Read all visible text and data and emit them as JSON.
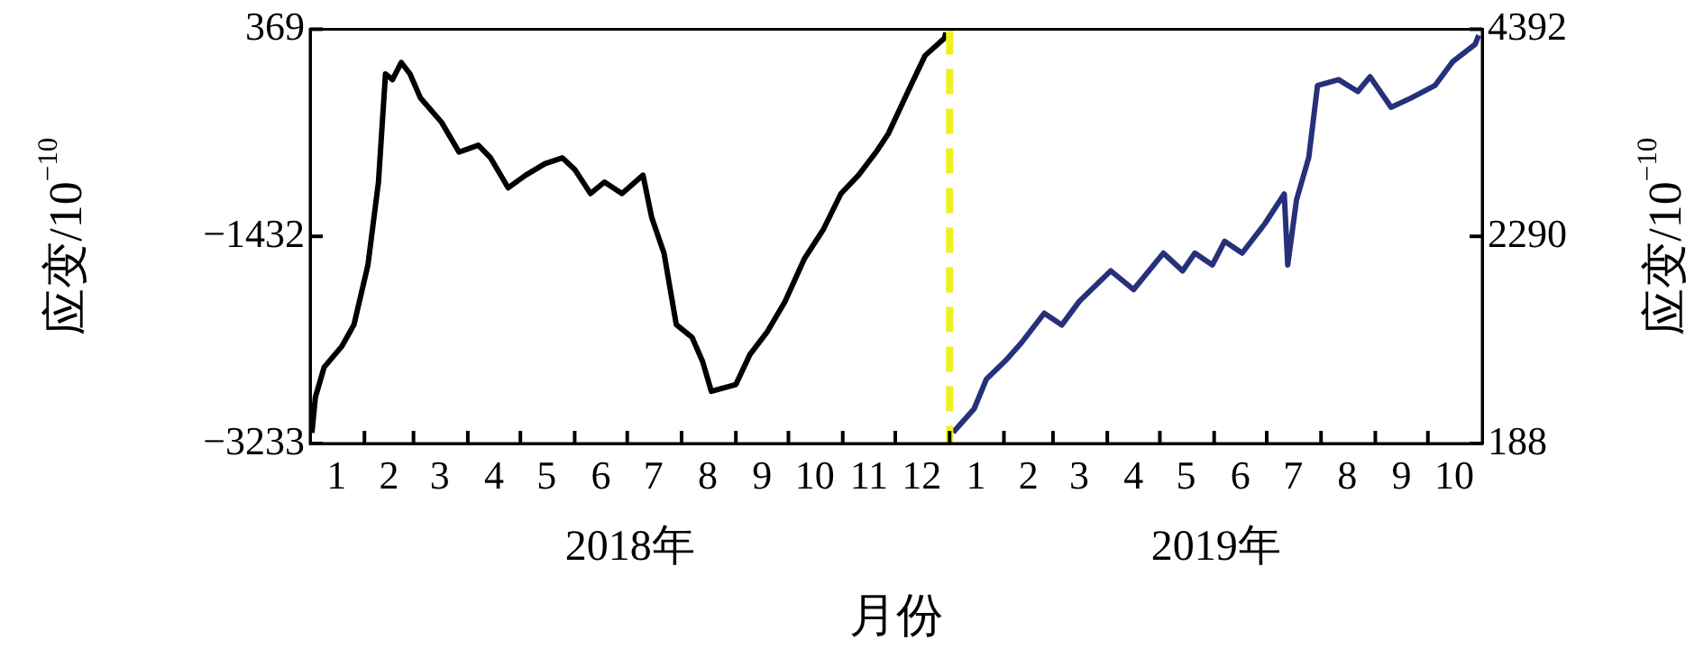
{
  "chart_data": {
    "type": "line",
    "xlabel": "月份",
    "ylabel": "应变/10$^{−10}$",
    "y2label": "应变/10$^{−10}$",
    "annotations": [
      "2018年",
      "2019年"
    ],
    "xlim": [
      "2018-01-01",
      "2019-11-01"
    ],
    "xticks": [
      {
        "value": "2018-01-16",
        "label": "1"
      },
      {
        "value": "2018-02-15",
        "label": "2"
      },
      {
        "value": "2018-03-16",
        "label": "3"
      },
      {
        "value": "2018-04-16",
        "label": "4"
      },
      {
        "value": "2018-05-16",
        "label": "5"
      },
      {
        "value": "2018-06-16",
        "label": "6"
      },
      {
        "value": "2018-07-16",
        "label": "7"
      },
      {
        "value": "2018-08-16",
        "label": "8"
      },
      {
        "value": "2018-09-16",
        "label": "9"
      },
      {
        "value": "2018-10-16",
        "label": "10"
      },
      {
        "value": "2018-11-16",
        "label": "11"
      },
      {
        "value": "2018-12-16",
        "label": "12"
      },
      {
        "value": "2019-01-16",
        "label": "1"
      },
      {
        "value": "2019-02-15",
        "label": "2"
      },
      {
        "value": "2019-03-16",
        "label": "3"
      },
      {
        "value": "2019-04-16",
        "label": "4"
      },
      {
        "value": "2019-05-16",
        "label": "5"
      },
      {
        "value": "2019-06-16",
        "label": "6"
      },
      {
        "value": "2019-07-16",
        "label": "7"
      },
      {
        "value": "2019-08-16",
        "label": "8"
      },
      {
        "value": "2019-09-16",
        "label": "9"
      },
      {
        "value": "2019-10-16",
        "label": "10"
      },
      {
        "value": "2018-02-01",
        "label": null
      },
      {
        "value": "2018-03-01",
        "label": null
      },
      {
        "value": "2018-04-01",
        "label": null
      },
      {
        "value": "2018-05-01",
        "label": null
      },
      {
        "value": "2018-06-01",
        "label": null
      },
      {
        "value": "2018-07-01",
        "label": null
      },
      {
        "value": "2018-08-01",
        "label": null
      },
      {
        "value": "2018-09-01",
        "label": null
      },
      {
        "value": "2018-10-01",
        "label": null
      },
      {
        "value": "2018-11-01",
        "label": null
      },
      {
        "value": "2018-12-01",
        "label": null
      },
      {
        "value": "2019-01-01",
        "label": null
      },
      {
        "value": "2019-02-01",
        "label": null
      },
      {
        "value": "2019-03-01",
        "label": null
      },
      {
        "value": "2019-04-01",
        "label": null
      },
      {
        "value": "2019-05-01",
        "label": null
      },
      {
        "value": "2019-06-01",
        "label": null
      },
      {
        "value": "2019-07-01",
        "label": null
      },
      {
        "value": "2019-08-01",
        "label": null
      },
      {
        "value": "2019-09-01",
        "label": null
      },
      {
        "value": "2019-10-01",
        "label": null
      }
    ],
    "ylim": [
      -3233,
      369
    ],
    "yticks": [
      {
        "value": -3233,
        "label": "−3233"
      },
      {
        "value": -1432,
        "label": "−1432"
      },
      369
    ],
    "y2lim": [
      188,
      4392
    ],
    "y2ticks": [
      188,
      2290,
      4392
    ],
    "marker": "none",
    "legend": false,
    "grid": false,
    "ref_lines": [
      {
        "axis": "x",
        "value": "2019-01-01",
        "label": null,
        "color": "#f0f020",
        "line_style": "dashed"
      }
    ],
    "series": [
      {
        "color": "#000000",
        "x": [
          "2018-01-02",
          "2018-01-04",
          "2018-01-09",
          "2018-01-19",
          "2018-01-26",
          "2018-02-03",
          "2018-02-09",
          "2018-02-13",
          "2018-02-17",
          "2018-02-22",
          "2018-02-27",
          "2018-03-05",
          "2018-03-17",
          "2018-03-27",
          "2018-04-07",
          "2018-04-14",
          "2018-04-24",
          "2018-05-04",
          "2018-05-15",
          "2018-05-25",
          "2018-06-01",
          "2018-06-10",
          "2018-06-18",
          "2018-06-28",
          "2018-07-10",
          "2018-07-15",
          "2018-07-22",
          "2018-07-29",
          "2018-08-07",
          "2018-08-13",
          "2018-08-18",
          "2018-08-25",
          "2018-09-01",
          "2018-09-09",
          "2018-09-19",
          "2018-09-29",
          "2018-10-10",
          "2018-10-21",
          "2018-10-31",
          "2018-11-10",
          "2018-11-20",
          "2018-11-27",
          "2018-12-08",
          "2018-12-18",
          "2018-12-29",
          "2018-12-30"
        ],
        "values": [
          -3140,
          -2830,
          -2570,
          -2390,
          -2200,
          -1680,
          -960,
          -20,
          -70,
          80,
          -20,
          -230,
          -440,
          -700,
          -640,
          -750,
          -1010,
          -900,
          -800,
          -750,
          -850,
          -1060,
          -960,
          -1060,
          -900,
          -1270,
          -1580,
          -2200,
          -2310,
          -2520,
          -2780,
          -2750,
          -2720,
          -2460,
          -2260,
          -2000,
          -1630,
          -1370,
          -1060,
          -900,
          -700,
          -540,
          -180,
          140,
          290,
          340
        ]
      },
      {
        "color": "#27307a",
        "axis": "y2",
        "x": [
          "2019-01-03",
          "2019-01-15",
          "2019-01-22",
          "2019-02-02",
          "2019-02-11",
          "2019-02-24",
          "2019-03-06",
          "2019-03-16",
          "2019-04-03",
          "2019-04-16",
          "2019-05-03",
          "2019-05-14",
          "2019-05-21",
          "2019-05-31",
          "2019-06-07",
          "2019-06-17",
          "2019-06-30",
          "2019-07-11",
          "2019-07-13",
          "2019-07-18",
          "2019-07-25",
          "2019-07-30",
          "2019-08-11",
          "2019-08-22",
          "2019-08-29",
          "2019-09-10",
          "2019-09-21",
          "2019-10-05",
          "2019-10-15",
          "2019-10-28",
          "2019-10-30"
        ],
        "values": [
          300,
          540,
          840,
          1030,
          1210,
          1510,
          1390,
          1630,
          1940,
          1750,
          2120,
          1940,
          2120,
          2000,
          2240,
          2120,
          2420,
          2720,
          2000,
          2660,
          3090,
          3820,
          3880,
          3760,
          3910,
          3600,
          3690,
          3820,
          4060,
          4240,
          4330
        ]
      }
    ]
  }
}
